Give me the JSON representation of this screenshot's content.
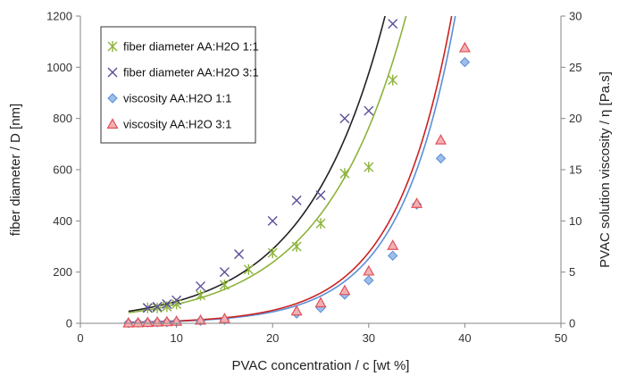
{
  "chart_data": {
    "type": "scatter",
    "title": "",
    "xlabel": "PVAC concentration / c [wt %]",
    "ylabel": "fiber diameter / D [nm]",
    "y2label": "PVAC solution viscosity / η [Pa.s]",
    "xlim": [
      0,
      50
    ],
    "ylim": [
      0,
      1200
    ],
    "y2lim": [
      0,
      30
    ],
    "xticks": [
      "0",
      "10",
      "20",
      "30",
      "40",
      "50"
    ],
    "yticks": [
      "0",
      "200",
      "400",
      "600",
      "800",
      "1000",
      "1200"
    ],
    "y2ticks": [
      "0",
      "5",
      "10",
      "15",
      "20",
      "25",
      "30"
    ],
    "grid": false,
    "legend_position": "top-left",
    "series": [
      {
        "name": "fiber diameter AA:H2O 1:1",
        "axis": "left",
        "marker": "asterisk",
        "color": "#8db33c",
        "x": [
          7,
          8,
          9,
          10,
          12.5,
          15,
          17.5,
          20,
          22.5,
          25,
          27.5,
          30,
          32.5
        ],
        "y": [
          60,
          60,
          65,
          75,
          110,
          150,
          210,
          275,
          300,
          390,
          585,
          610,
          950
        ]
      },
      {
        "name": "fiber diameter AA:H2O 3:1",
        "axis": "left",
        "marker": "x",
        "color": "#5a4e9a",
        "x": [
          7,
          8,
          9,
          10,
          12.5,
          15,
          16.5,
          20,
          22.5,
          25,
          27.5,
          30,
          32.5
        ],
        "y": [
          60,
          65,
          75,
          90,
          145,
          200,
          270,
          400,
          480,
          500,
          800,
          830,
          1170
        ]
      },
      {
        "name": "viscosity AA:H2O 1:1",
        "axis": "right",
        "marker": "diamond",
        "color": "#5b8fd6",
        "x": [
          5,
          6,
          7,
          8,
          9,
          10,
          12.5,
          15,
          22.5,
          25,
          27.5,
          30,
          32.5,
          35,
          37.5,
          40
        ],
        "y": [
          0.02,
          0.05,
          0.08,
          0.1,
          0.12,
          0.15,
          0.25,
          0.35,
          0.95,
          1.5,
          2.8,
          4.2,
          6.6,
          11.6,
          16.1,
          25.5
        ]
      },
      {
        "name": "viscosity AA:H2O 3:1",
        "axis": "right",
        "marker": "triangle",
        "color": "#e0525a",
        "x": [
          5,
          6,
          7,
          8,
          9,
          10,
          12.5,
          15,
          22.5,
          25,
          27.5,
          30,
          32.5,
          35,
          37.5,
          40
        ],
        "y": [
          0.03,
          0.05,
          0.08,
          0.12,
          0.15,
          0.2,
          0.3,
          0.45,
          1.2,
          2.0,
          3.2,
          5.1,
          7.6,
          11.7,
          17.9,
          26.9
        ]
      }
    ],
    "fit_curves": [
      {
        "series": "fiber diameter AA:H2O 1:1",
        "axis": "left",
        "color": "#8db33c",
        "a": 23.1,
        "b": 0.1166,
        "x_from": 5
      },
      {
        "series": "fiber diameter AA:H2O 3:1",
        "axis": "left",
        "color": "#222222",
        "a": 25.5,
        "b": 0.1215,
        "x_from": 5
      },
      {
        "series": "viscosity AA:H2O 1:1",
        "axis": "right",
        "color": "#5b8fd6",
        "a": 0.0352,
        "b": 0.173,
        "x_from": 5
      },
      {
        "series": "viscosity AA:H2O 3:1",
        "axis": "right",
        "color": "#cc2222",
        "a": 0.0422,
        "b": 0.17,
        "x_from": 5
      }
    ]
  }
}
